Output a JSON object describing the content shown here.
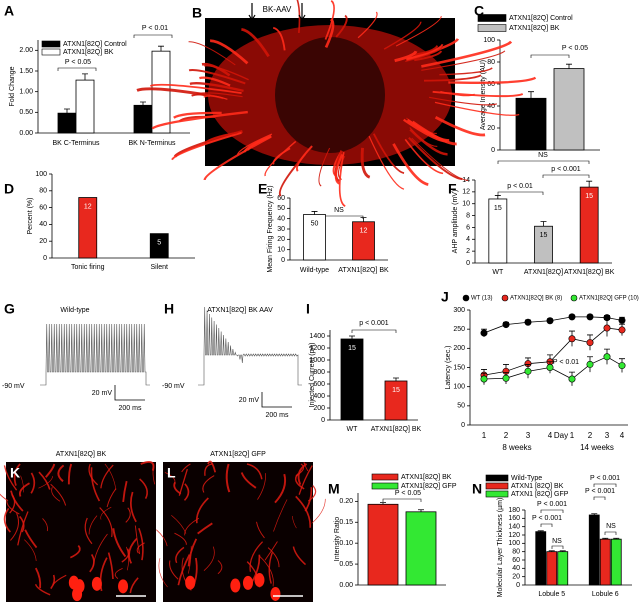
{
  "chart_data": [
    {
      "type": "bar",
      "panel": "A",
      "categories": [
        "BK C-Terminus",
        "BK N-Terminus"
      ],
      "series": [
        {
          "name": "ATXN1[82Q] Control",
          "color": "#000000",
          "values": [
            0.48,
            0.67
          ],
          "errors": [
            0.1,
            0.08
          ]
        },
        {
          "name": "ATXN1[82Q] BK",
          "color": "#ffffff",
          "values": [
            1.28,
            1.98
          ],
          "errors": [
            0.15,
            0.12
          ]
        }
      ],
      "ylim": [
        0,
        2.25
      ],
      "yticks": [
        {
          "value": 0,
          "label": "0.00"
        },
        {
          "value": 0.5,
          "label": "0.50"
        },
        {
          "value": 1,
          "label": "1.00"
        },
        {
          "value": 1.5,
          "label": "1.50"
        },
        {
          "value": 2,
          "label": "2.00"
        }
      ],
      "ylabel": "Fold Change",
      "annotations": [
        "P < 0.05",
        "P < 0.01"
      ]
    },
    {
      "type": "bar",
      "panel": "C",
      "categories": [
        null
      ],
      "series": [
        {
          "name": "ATXN1[82Q] Control",
          "color": "#000000",
          "values": [
            47
          ],
          "errors": [
            6
          ]
        },
        {
          "name": "ATXN1[82Q] BK",
          "color": "#c0c0c0",
          "values": [
            74
          ],
          "errors": [
            4
          ]
        }
      ],
      "ylim": [
        0,
        100
      ],
      "yticks": [
        0,
        20,
        40,
        60,
        80,
        100
      ],
      "ylabel": "Average Intensity (AU)",
      "annotations": [
        "P < 0.05"
      ]
    },
    {
      "type": "bar",
      "panel": "D",
      "categories": [
        "Tonic firing",
        "Silent"
      ],
      "values": [
        72,
        29
      ],
      "colors": [
        "#e8281e",
        "#000000"
      ],
      "n": [
        12,
        5
      ],
      "ylim": [
        0,
        100
      ],
      "yticks": [
        0,
        20,
        40,
        60,
        80,
        100
      ],
      "ylabel": "Percent (%)",
      "annotations": []
    },
    {
      "type": "bar",
      "panel": "E",
      "categories": [
        "Wild-type",
        "ATXN1[82Q] BK"
      ],
      "values": [
        44,
        37
      ],
      "errors": [
        3,
        4
      ],
      "colors": [
        "#ffffff",
        "#e8281e"
      ],
      "n": [
        50,
        12
      ],
      "ylim": [
        0,
        60
      ],
      "yticks": [
        0,
        10,
        20,
        30,
        40,
        50,
        60
      ],
      "ylabel": "Mean Firing Frequency (Hz)",
      "annotations": [
        "NS"
      ]
    },
    {
      "type": "bar",
      "panel": "F",
      "categories": [
        "WT",
        "ATXN1[82Q]",
        "ATXN1[82Q] BK"
      ],
      "values": [
        10.8,
        6.2,
        12.8
      ],
      "errors": [
        0.6,
        0.8,
        1.0
      ],
      "colors": [
        "#ffffff",
        "#c0c0c0",
        "#e8281e"
      ],
      "n": [
        15,
        15,
        15
      ],
      "ylim": [
        0,
        14
      ],
      "yticks": [
        0,
        2,
        4,
        6,
        8,
        10,
        12,
        14
      ],
      "ylabel": "AHP amplitude (mV)",
      "annotations": [
        "NS",
        "p < 0.01",
        "p < 0.001"
      ]
    },
    {
      "type": "bar",
      "panel": "I",
      "categories": [
        "WT",
        "ATXN1[82Q] BK"
      ],
      "values": [
        1350,
        650
      ],
      "errors": [
        50,
        50
      ],
      "colors": [
        "#000000",
        "#e8281e"
      ],
      "n": [
        15,
        15
      ],
      "ylim": [
        0,
        1500
      ],
      "yticks": [
        0,
        200,
        400,
        600,
        800,
        1000,
        1200,
        1400
      ],
      "ylabel": "Injected Current (pA)",
      "annotations": [
        "p < 0.001"
      ]
    },
    {
      "type": "line",
      "panel": "J",
      "categories": [
        1,
        2,
        3,
        4,
        1,
        2,
        3,
        4
      ],
      "groups": [
        "8 weeks",
        "14 weeks"
      ],
      "xlabel": "Day",
      "series": [
        {
          "name": "WT (13)",
          "color": "#000000",
          "values": [
            240,
            262,
            268,
            272,
            282,
            282,
            280,
            273
          ],
          "errors": [
            10,
            6,
            6,
            5,
            5,
            5,
            6,
            8
          ]
        },
        {
          "name": "ATXN1[82Q] BK (8)",
          "color": "#e8281e",
          "values": [
            130,
            140,
            160,
            165,
            225,
            215,
            253,
            248
          ],
          "errors": [
            15,
            18,
            15,
            18,
            20,
            20,
            22,
            15
          ]
        },
        {
          "name": "ATXN1[82Q] GFP (10)",
          "color": "#33e833",
          "values": [
            120,
            122,
            140,
            150,
            120,
            158,
            178,
            155
          ],
          "errors": [
            15,
            15,
            18,
            15,
            18,
            20,
            20,
            18
          ]
        }
      ],
      "ylim": [
        0,
        300
      ],
      "yticks": [
        0,
        50,
        100,
        150,
        200,
        250,
        300
      ],
      "ylabel": "Latency (sec.)",
      "annotations": [
        "P < 0.01"
      ]
    },
    {
      "type": "bar",
      "panel": "M",
      "categories": [
        null
      ],
      "series": [
        {
          "name": "ATXN1[82Q] BK",
          "color": "#e8281e",
          "values": [
            0.193
          ],
          "errors": [
            0.004
          ]
        },
        {
          "name": "ATXN1[82Q] GFP",
          "color": "#33e833",
          "values": [
            0.175
          ],
          "errors": [
            0.005
          ]
        }
      ],
      "ylim": [
        0,
        0.22
      ],
      "yticks": [
        {
          "value": 0,
          "label": "0.00"
        },
        {
          "value": 0.05,
          "label": "0.05"
        },
        {
          "value": 0.1,
          "label": "0.10"
        },
        {
          "value": 0.15,
          "label": "0.15"
        },
        {
          "value": 0.2,
          "label": "0.20"
        }
      ],
      "ylabel": "Intensity Ratio",
      "annotations": [
        "P < 0.05"
      ]
    },
    {
      "type": "bar",
      "panel": "N",
      "categories": [
        "Lobule 5",
        "Lobule 6"
      ],
      "series": [
        {
          "name": "Wild-Type",
          "color": "#000000",
          "values": [
            128,
            168
          ],
          "errors": [
            2,
            3
          ]
        },
        {
          "name": "ATXN1 [82Q] BK",
          "color": "#e8281e",
          "values": [
            80,
            110
          ],
          "errors": [
            2,
            2
          ]
        },
        {
          "name": "ATXN1 [82Q] GFP",
          "color": "#33e833",
          "values": [
            80,
            110
          ],
          "errors": [
            2,
            2
          ]
        }
      ],
      "ylim": [
        0,
        180
      ],
      "yticks": [
        0,
        20,
        40,
        60,
        80,
        100,
        120,
        140,
        160,
        180
      ],
      "ylabel": "Molecular Layer Thickness (µm)",
      "annotations": [
        "P < 0.001",
        "P < 0.001",
        "NS",
        "P < 0.001",
        "P < 0.001",
        "NS"
      ]
    }
  ],
  "figures": [
    {
      "panel": "B",
      "labels": [
        "BK-AAV"
      ]
    },
    {
      "panel": "G",
      "title": "Wild-type",
      "labels": [
        "-90 mV",
        "20 mV",
        "200 ms"
      ]
    },
    {
      "panel": "H",
      "title": "ATXN1[82Q] BK AAV",
      "labels": [
        "-90 mV",
        "20 mV",
        "200 ms"
      ]
    },
    {
      "panel": "K",
      "title": "ATXN1[82Q] BK"
    },
    {
      "panel": "L",
      "title": "ATXN1[82Q] GFP"
    }
  ]
}
